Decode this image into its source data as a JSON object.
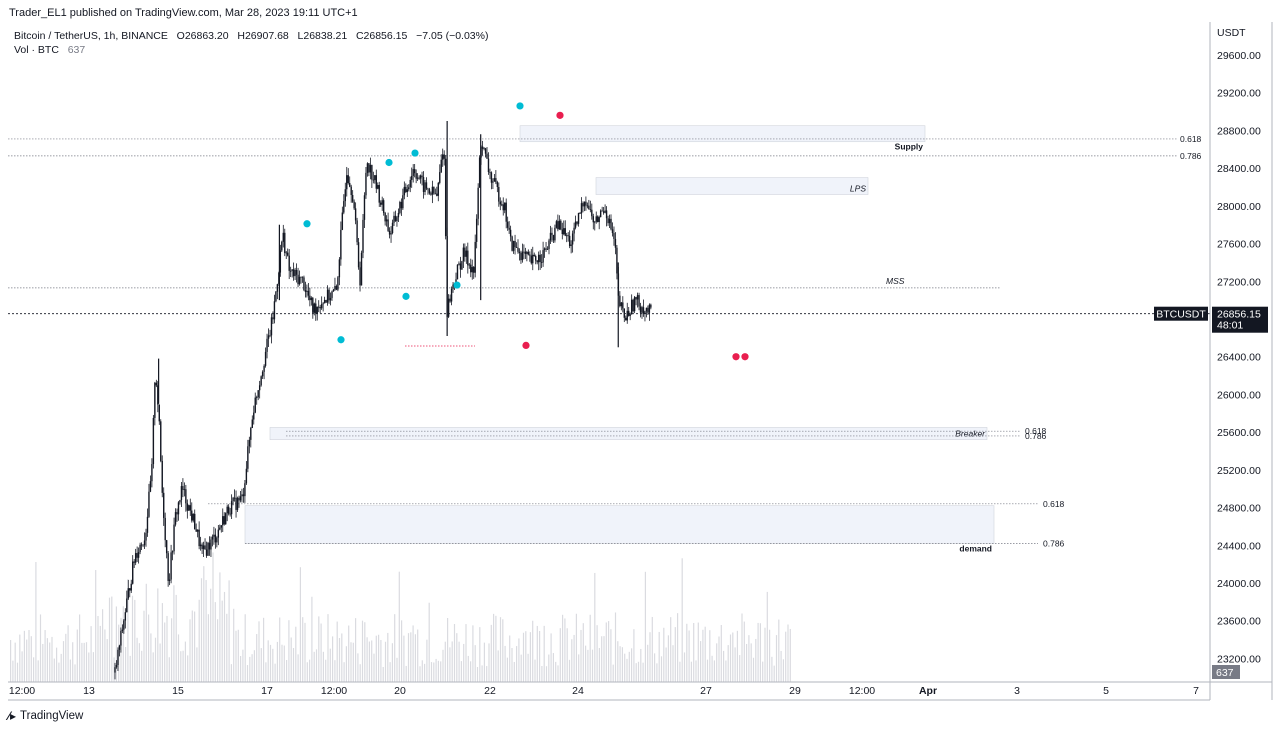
{
  "header": {
    "publisher": "Trader_EL1 published on TradingView.com, Mar 28, 2023 19:11 UTC+1",
    "symbol": "Bitcoin / TetherUS, 1h, BINANCE",
    "o_label": "O",
    "o_value": "26863.20",
    "h_label": "H",
    "h_value": "26907.68",
    "l_label": "L",
    "l_value": "26838.21",
    "c_label": "C",
    "c_value": "26856.15",
    "change": "−7.05 (−0.03%)",
    "vol_label": "Vol · BTC",
    "vol_value": "637"
  },
  "footer": {
    "brand": "TradingView"
  },
  "colors": {
    "candle": "#131722",
    "volume": "#dadbe0",
    "cyan_dot": "#00bcd4",
    "red_dot": "#e91e4f",
    "zone_fill": "#f0f3fa",
    "zone_border": "#d1d4dc",
    "price_tag": "#131722"
  },
  "chart_data": {
    "type": "candlestick",
    "price_axis": {
      "currency": "USDT",
      "ticks": [
        29600,
        29200,
        28800,
        28400,
        28000,
        27600,
        27200,
        26800,
        26400,
        26000,
        25600,
        25200,
        24800,
        24400,
        24000,
        23600,
        23200
      ],
      "tick_labels": [
        "29600.00",
        "29200.00",
        "28800.00",
        "28400.00",
        "28000.00",
        "27600.00",
        "27200.00",
        "",
        "26400.00",
        "26000.00",
        "25600.00",
        "25200.00",
        "24800.00",
        "24400.00",
        "24000.00",
        "23600.00",
        "23200.00"
      ],
      "range": [
        22950,
        29950
      ]
    },
    "time_axis": {
      "ticks": [
        "12:00",
        "13",
        "15",
        "17",
        "12:00",
        "20",
        "22",
        "24",
        "27",
        "29",
        "12:00",
        "Apr",
        "3",
        "5",
        "7"
      ]
    },
    "current_price": {
      "symbol": "BTCUSDT",
      "value": 26856.15,
      "label": "26856.15",
      "countdown": "48:01"
    },
    "volume_tag": "637",
    "price_path": [
      [
        0,
        23050
      ],
      [
        0.02,
        23900
      ],
      [
        0.03,
        24300
      ],
      [
        0.045,
        24500
      ],
      [
        0.055,
        25200
      ],
      [
        0.06,
        26300
      ],
      [
        0.065,
        25800
      ],
      [
        0.07,
        25000
      ],
      [
        0.08,
        24000
      ],
      [
        0.09,
        24700
      ],
      [
        0.1,
        25000
      ],
      [
        0.12,
        24600
      ],
      [
        0.13,
        24300
      ],
      [
        0.15,
        24500
      ],
      [
        0.17,
        24800
      ],
      [
        0.19,
        24900
      ],
      [
        0.205,
        25800
      ],
      [
        0.22,
        26300
      ],
      [
        0.235,
        26800
      ],
      [
        0.25,
        27700
      ],
      [
        0.26,
        27300
      ],
      [
        0.28,
        27200
      ],
      [
        0.295,
        26900
      ],
      [
        0.31,
        27000
      ],
      [
        0.33,
        27100
      ],
      [
        0.345,
        28400
      ],
      [
        0.355,
        28100
      ],
      [
        0.365,
        27200
      ],
      [
        0.375,
        28500
      ],
      [
        0.39,
        28200
      ],
      [
        0.41,
        27700
      ],
      [
        0.43,
        28100
      ],
      [
        0.445,
        28400
      ],
      [
        0.46,
        28200
      ],
      [
        0.48,
        28100
      ],
      [
        0.49,
        28700
      ],
      [
        0.495,
        26900
      ],
      [
        0.505,
        27200
      ],
      [
        0.52,
        27500
      ],
      [
        0.535,
        27300
      ],
      [
        0.545,
        28700
      ],
      [
        0.56,
        28300
      ],
      [
        0.58,
        28000
      ],
      [
        0.59,
        27600
      ],
      [
        0.605,
        27500
      ],
      [
        0.62,
        27400
      ],
      [
        0.64,
        27500
      ],
      [
        0.66,
        27800
      ],
      [
        0.68,
        27600
      ],
      [
        0.7,
        28100
      ],
      [
        0.715,
        27800
      ],
      [
        0.73,
        28000
      ],
      [
        0.745,
        27600
      ],
      [
        0.75,
        27000
      ],
      [
        0.76,
        26800
      ],
      [
        0.775,
        27000
      ],
      [
        0.79,
        26900
      ],
      [
        0.8,
        26860
      ]
    ],
    "zones": [
      {
        "label": "Supply",
        "top": 28850,
        "bottom": 28680
      },
      {
        "label": "LPS",
        "top": 28300,
        "bottom": 28120
      },
      {
        "label": "Breaker",
        "top": 25650,
        "bottom": 25520
      },
      {
        "label": "demand",
        "top": 24820,
        "bottom": 24420
      }
    ],
    "level_lines": [
      {
        "label": "0.618",
        "price": 28710
      },
      {
        "label": "0.786",
        "price": 28530
      },
      {
        "label": "MSS",
        "price": 27130
      },
      {
        "label": "0.618",
        "price": 25610
      },
      {
        "label": "0.786",
        "price": 25560
      },
      {
        "label": "0.618",
        "price": 24840
      },
      {
        "label": "0.786",
        "price": 24420
      }
    ],
    "swing_highs": [
      27810,
      28460,
      28560,
      29060
    ],
    "swing_lows": [
      26580,
      27040,
      27160
    ],
    "red_markers": [
      28960,
      26520,
      26400,
      26400
    ]
  }
}
